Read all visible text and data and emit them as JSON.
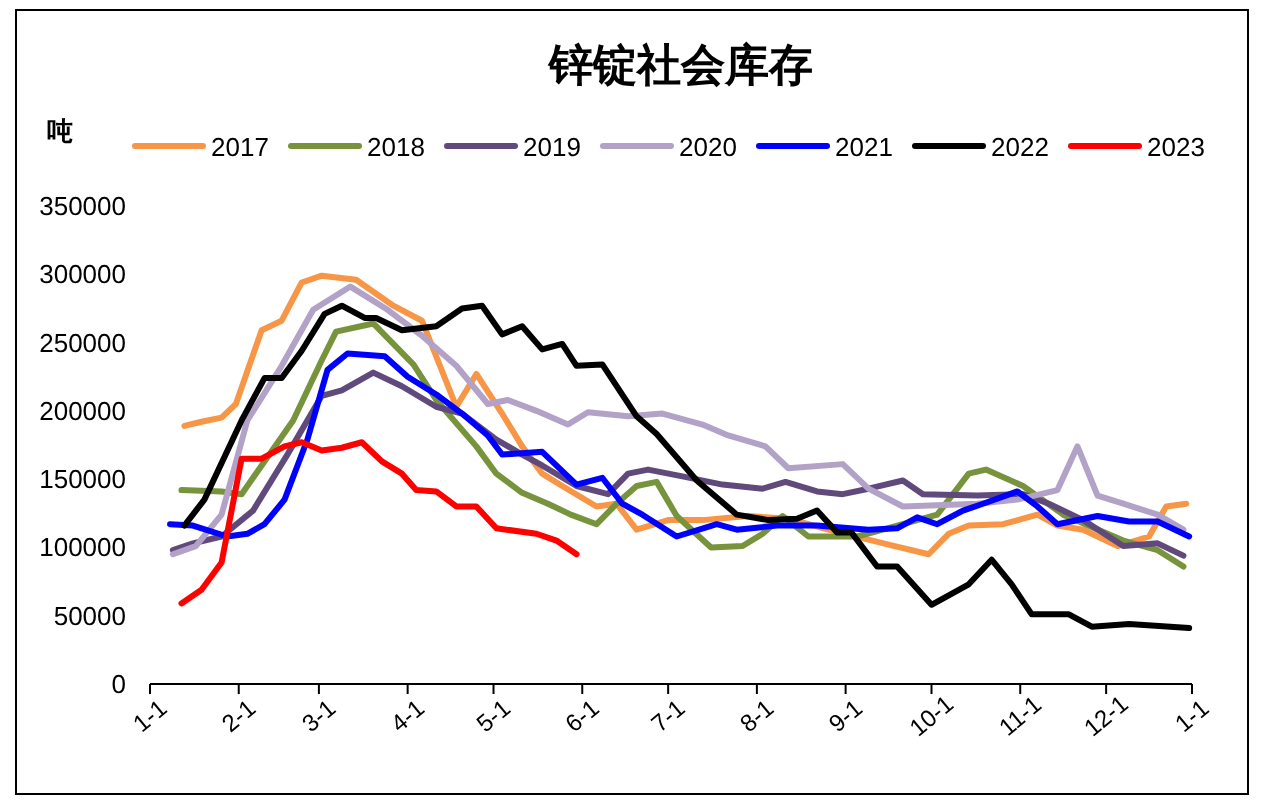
{
  "chart_data": {
    "type": "line",
    "title": "锌锭社会库存",
    "ylabel": "吨",
    "legend": "top",
    "xlim": [
      "--01-01",
      "--12-31"
    ],
    "xticks": [
      {
        "value": "--01-01",
        "label": "1-1"
      },
      {
        "value": "--02-01",
        "label": "2-1"
      },
      {
        "value": "--03-01",
        "label": "3-1"
      },
      {
        "value": "--04-01",
        "label": "4-1"
      },
      {
        "value": "--05-01",
        "label": "5-1"
      },
      {
        "value": "--06-01",
        "label": "6-1"
      },
      {
        "value": "--07-01",
        "label": "7-1"
      },
      {
        "value": "--08-01",
        "label": "8-1"
      },
      {
        "value": "--09-01",
        "label": "9-1"
      },
      {
        "value": "--10-01",
        "label": "10-1"
      },
      {
        "value": "--11-01",
        "label": "11-1"
      },
      {
        "value": "--12-01",
        "label": "12-1"
      },
      {
        "value": "--12-31",
        "label": "1-1"
      }
    ],
    "ylim": [
      0,
      350000
    ],
    "yticks": [
      0,
      50000,
      100000,
      150000,
      200000,
      250000,
      300000,
      350000
    ],
    "series": [
      {
        "name": "2017",
        "color": "#f79646",
        "x": [
          "--01-13",
          "--01-19",
          "--01-26",
          "--01-31",
          "--02-09",
          "--02-16",
          "--02-23",
          "--03-02",
          "--03-14",
          "--03-27",
          "--04-06",
          "--04-18",
          "--04-25",
          "--05-04",
          "--05-11",
          "--05-18",
          "--05-25",
          "--06-06",
          "--06-13",
          "--06-20",
          "--07-01",
          "--07-13",
          "--07-29",
          "--08-12",
          "--08-26",
          "--09-16",
          "--09-30",
          "--10-07",
          "--10-14",
          "--10-26",
          "--11-07",
          "--11-14",
          "--11-23",
          "--12-05",
          "--12-16",
          "--12-22",
          "--12-29"
        ],
        "values": [
          189000,
          192000,
          195000,
          205000,
          259000,
          266000,
          294000,
          299000,
          296000,
          277000,
          266000,
          203000,
          227000,
          198000,
          174000,
          154000,
          145000,
          130000,
          132000,
          113000,
          120000,
          120000,
          123000,
          121000,
          113000,
          102000,
          95000,
          110000,
          116000,
          117000,
          124000,
          116000,
          113000,
          101000,
          108000,
          130000,
          132000
        ]
      },
      {
        "name": "2018",
        "color": "#77933c",
        "x": [
          "--01-12",
          "--01-26",
          "--02-02",
          "--02-09",
          "--02-20",
          "--03-02",
          "--03-07",
          "--03-20",
          "--03-27",
          "--04-03",
          "--04-11",
          "--04-25",
          "--05-02",
          "--05-11",
          "--05-20",
          "--05-28",
          "--06-06",
          "--06-13",
          "--06-20",
          "--06-27",
          "--07-04",
          "--07-16",
          "--07-27",
          "--08-03",
          "--08-10",
          "--08-19",
          "--09-05",
          "--09-14",
          "--09-26",
          "--10-03",
          "--10-14",
          "--10-20",
          "--11-02",
          "--11-16",
          "--12-07",
          "--12-19",
          "--12-28"
        ],
        "values": [
          142000,
          141000,
          139000,
          160000,
          193000,
          237000,
          258000,
          264000,
          249000,
          234000,
          208000,
          174000,
          154000,
          140000,
          132000,
          124000,
          117000,
          132000,
          145000,
          148000,
          123000,
          100000,
          101000,
          110000,
          123000,
          108000,
          108000,
          113000,
          120000,
          124000,
          154000,
          157000,
          145000,
          124000,
          105000,
          98000,
          86000
        ]
      },
      {
        "name": "2019",
        "color": "#604a7b",
        "x": [
          "--01-09",
          "--01-16",
          "--01-26",
          "--02-06",
          "--02-18",
          "--03-02",
          "--03-09",
          "--03-20",
          "--03-30",
          "--04-11",
          "--04-20",
          "--05-02",
          "--05-11",
          "--05-18",
          "--05-30",
          "--06-10",
          "--06-17",
          "--06-24",
          "--07-06",
          "--07-20",
          "--08-03",
          "--08-11",
          "--08-22",
          "--08-31",
          "--09-09",
          "--09-21",
          "--09-28",
          "--10-17",
          "--11-02",
          "--11-11",
          "--11-23",
          "--12-07",
          "--12-19",
          "--12-28"
        ],
        "values": [
          98000,
          103000,
          108000,
          127000,
          168000,
          211000,
          215000,
          228000,
          218000,
          203000,
          198000,
          179000,
          168000,
          160000,
          145000,
          139000,
          154000,
          157000,
          152000,
          146000,
          143000,
          148000,
          141000,
          139000,
          143000,
          149000,
          139000,
          138000,
          139000,
          132000,
          120000,
          101000,
          103000,
          94000
        ]
      },
      {
        "name": "2020",
        "color": "#b3a2c7",
        "x": [
          "--01-09",
          "--01-17",
          "--01-26",
          "--02-04",
          "--02-16",
          "--02-27",
          "--03-12",
          "--03-25",
          "--04-06",
          "--04-18",
          "--04-29",
          "--05-06",
          "--05-16",
          "--05-27",
          "--06-03",
          "--06-17",
          "--06-29",
          "--07-13",
          "--07-22",
          "--08-04",
          "--08-12",
          "--08-31",
          "--09-09",
          "--09-21",
          "--10-17",
          "--10-31",
          "--11-14",
          "--11-21",
          "--11-28",
          "--12-07",
          "--12-19",
          "--12-28"
        ],
        "values": [
          95000,
          101000,
          124000,
          193000,
          233000,
          274000,
          291000,
          274000,
          255000,
          233000,
          205000,
          208000,
          200000,
          190000,
          199000,
          196000,
          198000,
          190000,
          182000,
          174000,
          158000,
          161000,
          143000,
          130000,
          132000,
          135000,
          142000,
          174000,
          138000,
          132000,
          124000,
          113000
        ]
      },
      {
        "name": "2021",
        "color": "#0000ff",
        "x": [
          "--01-08",
          "--01-16",
          "--01-28",
          "--02-04",
          "--02-10",
          "--02-17",
          "--02-25",
          "--03-04",
          "--03-11",
          "--03-24",
          "--04-01",
          "--04-11",
          "--04-20",
          "--04-29",
          "--05-04",
          "--05-18",
          "--05-30",
          "--06-08",
          "--06-15",
          "--06-22",
          "--07-04",
          "--07-18",
          "--07-25",
          "--08-08",
          "--08-22",
          "--09-09",
          "--09-19",
          "--09-26",
          "--10-03",
          "--10-12",
          "--10-19",
          "--10-31",
          "--11-07",
          "--11-14",
          "--11-28",
          "--12-09",
          "--12-19",
          "--12-30"
        ],
        "values": [
          117000,
          116000,
          108000,
          110000,
          117000,
          135000,
          179000,
          230000,
          242000,
          240000,
          225000,
          212000,
          198000,
          182000,
          168000,
          170000,
          146000,
          151000,
          132000,
          124000,
          108000,
          117000,
          113000,
          116000,
          116000,
          113000,
          114000,
          122000,
          117000,
          127000,
          132000,
          141000,
          130000,
          117000,
          123000,
          119000,
          119000,
          108000
        ]
      },
      {
        "name": "2022",
        "color": "#000000",
        "x": [
          "--01-13",
          "--01-20",
          "--02-02",
          "--02-10",
          "--02-16",
          "--02-23",
          "--03-03",
          "--03-09",
          "--03-17",
          "--03-21",
          "--03-30",
          "--04-11",
          "--04-20",
          "--04-27",
          "--05-04",
          "--05-11",
          "--05-18",
          "--05-25",
          "--05-30",
          "--06-08",
          "--06-20",
          "--06-27",
          "--07-11",
          "--07-25",
          "--08-05",
          "--08-15",
          "--08-22",
          "--08-29",
          "--09-03",
          "--09-12",
          "--09-19",
          "--10-01",
          "--10-14",
          "--10-22",
          "--10-29",
          "--11-05",
          "--11-18",
          "--11-26",
          "--12-09",
          "--12-30"
        ],
        "values": [
          116000,
          135000,
          193000,
          224000,
          224000,
          244000,
          271000,
          277000,
          268000,
          268000,
          259000,
          262000,
          275000,
          277000,
          256000,
          262000,
          245000,
          249000,
          233000,
          234000,
          196000,
          183000,
          149000,
          124000,
          120000,
          121000,
          127000,
          111000,
          111000,
          86000,
          86000,
          58000,
          73000,
          91000,
          73000,
          51000,
          51000,
          42000,
          44000,
          41000
        ]
      },
      {
        "name": "2023",
        "color": "#ff0000",
        "x": [
          "--01-12",
          "--01-19",
          "--01-26",
          "--02-02",
          "--02-09",
          "--02-17",
          "--02-23",
          "--03-02",
          "--03-09",
          "--03-16",
          "--03-23",
          "--03-30",
          "--04-04",
          "--04-11",
          "--04-18",
          "--04-25",
          "--05-02",
          "--05-16",
          "--05-23",
          "--05-30"
        ],
        "values": [
          59000,
          69000,
          89000,
          165000,
          165000,
          174000,
          177000,
          171000,
          173000,
          177000,
          163000,
          154000,
          142000,
          141000,
          130000,
          130000,
          114000,
          110000,
          105000,
          95000
        ]
      }
    ]
  }
}
